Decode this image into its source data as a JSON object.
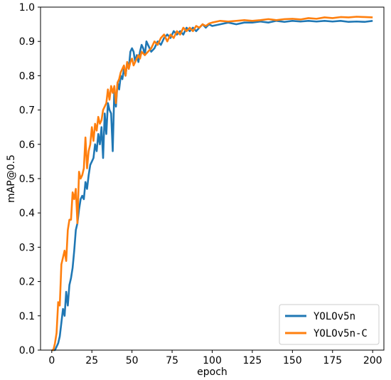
{
  "chart_data": {
    "type": "line",
    "title": "",
    "xlabel": "epoch",
    "ylabel": "mAP@0.5",
    "xlim": [
      -7,
      207
    ],
    "ylim": [
      0,
      1.0
    ],
    "xticks": [
      0,
      25,
      50,
      75,
      100,
      125,
      150,
      175,
      200
    ],
    "yticks": [
      0.0,
      0.1,
      0.2,
      0.3,
      0.4,
      0.5,
      0.6,
      0.7,
      0.8,
      0.9,
      1.0
    ],
    "grid": false,
    "legend": "lower-right",
    "series": [
      {
        "name": "YOLOv5n",
        "color": "#1f77b4",
        "points": [
          [
            0,
            0
          ],
          [
            2,
            0.0
          ],
          [
            3,
            0.01
          ],
          [
            4,
            0.02
          ],
          [
            5,
            0.04
          ],
          [
            6,
            0.08
          ],
          [
            7,
            0.12
          ],
          [
            8,
            0.1
          ],
          [
            9,
            0.17
          ],
          [
            10,
            0.13
          ],
          [
            11,
            0.19
          ],
          [
            12,
            0.21
          ],
          [
            13,
            0.24
          ],
          [
            14,
            0.29
          ],
          [
            15,
            0.35
          ],
          [
            16,
            0.37
          ],
          [
            17,
            0.41
          ],
          [
            18,
            0.44
          ],
          [
            19,
            0.45
          ],
          [
            20,
            0.44
          ],
          [
            21,
            0.49
          ],
          [
            22,
            0.47
          ],
          [
            23,
            0.51
          ],
          [
            24,
            0.54
          ],
          [
            25,
            0.55
          ],
          [
            26,
            0.56
          ],
          [
            27,
            0.6
          ],
          [
            28,
            0.58
          ],
          [
            29,
            0.63
          ],
          [
            30,
            0.6
          ],
          [
            31,
            0.65
          ],
          [
            32,
            0.56
          ],
          [
            33,
            0.69
          ],
          [
            34,
            0.63
          ],
          [
            35,
            0.72
          ],
          [
            36,
            0.7
          ],
          [
            37,
            0.69
          ],
          [
            38,
            0.58
          ],
          [
            39,
            0.76
          ],
          [
            40,
            0.71
          ],
          [
            41,
            0.78
          ],
          [
            42,
            0.76
          ],
          [
            43,
            0.8
          ],
          [
            44,
            0.79
          ],
          [
            45,
            0.82
          ],
          [
            46,
            0.8
          ],
          [
            47,
            0.84
          ],
          [
            48,
            0.82
          ],
          [
            49,
            0.87
          ],
          [
            50,
            0.88
          ],
          [
            51,
            0.87
          ],
          [
            52,
            0.84
          ],
          [
            53,
            0.86
          ],
          [
            54,
            0.84
          ],
          [
            55,
            0.87
          ],
          [
            56,
            0.89
          ],
          [
            57,
            0.88
          ],
          [
            58,
            0.86
          ],
          [
            59,
            0.9
          ],
          [
            60,
            0.89
          ],
          [
            62,
            0.87
          ],
          [
            64,
            0.88
          ],
          [
            66,
            0.9
          ],
          [
            68,
            0.89
          ],
          [
            70,
            0.91
          ],
          [
            72,
            0.92
          ],
          [
            74,
            0.91
          ],
          [
            76,
            0.93
          ],
          [
            78,
            0.92
          ],
          [
            80,
            0.93
          ],
          [
            82,
            0.92
          ],
          [
            84,
            0.94
          ],
          [
            86,
            0.93
          ],
          [
            88,
            0.94
          ],
          [
            90,
            0.93
          ],
          [
            92,
            0.94
          ],
          [
            94,
            0.95
          ],
          [
            96,
            0.94
          ],
          [
            98,
            0.95
          ],
          [
            100,
            0.945
          ],
          [
            105,
            0.95
          ],
          [
            110,
            0.955
          ],
          [
            115,
            0.95
          ],
          [
            120,
            0.955
          ],
          [
            125,
            0.955
          ],
          [
            130,
            0.958
          ],
          [
            135,
            0.955
          ],
          [
            140,
            0.96
          ],
          [
            145,
            0.957
          ],
          [
            150,
            0.96
          ],
          [
            155,
            0.958
          ],
          [
            160,
            0.96
          ],
          [
            165,
            0.958
          ],
          [
            170,
            0.96
          ],
          [
            175,
            0.958
          ],
          [
            180,
            0.96
          ],
          [
            185,
            0.957
          ],
          [
            190,
            0.958
          ],
          [
            195,
            0.957
          ],
          [
            200,
            0.96
          ]
        ]
      },
      {
        "name": "YOLOv5n-C",
        "color": "#ff7f0e",
        "points": [
          [
            0,
            0
          ],
          [
            1,
            0.0
          ],
          [
            2,
            0.02
          ],
          [
            3,
            0.05
          ],
          [
            4,
            0.14
          ],
          [
            5,
            0.13
          ],
          [
            6,
            0.25
          ],
          [
            7,
            0.27
          ],
          [
            8,
            0.29
          ],
          [
            9,
            0.26
          ],
          [
            10,
            0.35
          ],
          [
            11,
            0.38
          ],
          [
            12,
            0.38
          ],
          [
            13,
            0.46
          ],
          [
            14,
            0.44
          ],
          [
            15,
            0.47
          ],
          [
            16,
            0.37
          ],
          [
            17,
            0.52
          ],
          [
            18,
            0.5
          ],
          [
            19,
            0.51
          ],
          [
            20,
            0.53
          ],
          [
            21,
            0.62
          ],
          [
            22,
            0.53
          ],
          [
            23,
            0.58
          ],
          [
            24,
            0.6
          ],
          [
            25,
            0.65
          ],
          [
            26,
            0.61
          ],
          [
            27,
            0.66
          ],
          [
            28,
            0.64
          ],
          [
            29,
            0.68
          ],
          [
            30,
            0.66
          ],
          [
            31,
            0.67
          ],
          [
            32,
            0.7
          ],
          [
            33,
            0.71
          ],
          [
            34,
            0.72
          ],
          [
            35,
            0.76
          ],
          [
            36,
            0.73
          ],
          [
            37,
            0.77
          ],
          [
            38,
            0.75
          ],
          [
            39,
            0.77
          ],
          [
            40,
            0.72
          ],
          [
            41,
            0.78
          ],
          [
            42,
            0.79
          ],
          [
            43,
            0.81
          ],
          [
            44,
            0.82
          ],
          [
            45,
            0.83
          ],
          [
            46,
            0.8
          ],
          [
            47,
            0.84
          ],
          [
            48,
            0.82
          ],
          [
            49,
            0.84
          ],
          [
            50,
            0.85
          ],
          [
            51,
            0.83
          ],
          [
            52,
            0.84
          ],
          [
            53,
            0.85
          ],
          [
            54,
            0.86
          ],
          [
            55,
            0.85
          ],
          [
            56,
            0.87
          ],
          [
            58,
            0.86
          ],
          [
            60,
            0.87
          ],
          [
            62,
            0.88
          ],
          [
            64,
            0.9
          ],
          [
            66,
            0.89
          ],
          [
            68,
            0.91
          ],
          [
            70,
            0.92
          ],
          [
            72,
            0.9
          ],
          [
            74,
            0.92
          ],
          [
            76,
            0.91
          ],
          [
            78,
            0.93
          ],
          [
            80,
            0.92
          ],
          [
            82,
            0.94
          ],
          [
            84,
            0.93
          ],
          [
            86,
            0.94
          ],
          [
            88,
            0.93
          ],
          [
            90,
            0.945
          ],
          [
            92,
            0.94
          ],
          [
            94,
            0.95
          ],
          [
            96,
            0.945
          ],
          [
            98,
            0.952
          ],
          [
            100,
            0.955
          ],
          [
            105,
            0.96
          ],
          [
            110,
            0.958
          ],
          [
            115,
            0.96
          ],
          [
            120,
            0.962
          ],
          [
            125,
            0.96
          ],
          [
            130,
            0.962
          ],
          [
            135,
            0.965
          ],
          [
            140,
            0.962
          ],
          [
            145,
            0.965
          ],
          [
            150,
            0.966
          ],
          [
            155,
            0.964
          ],
          [
            160,
            0.968
          ],
          [
            165,
            0.966
          ],
          [
            170,
            0.97
          ],
          [
            175,
            0.968
          ],
          [
            180,
            0.971
          ],
          [
            185,
            0.97
          ],
          [
            190,
            0.972
          ],
          [
            195,
            0.971
          ],
          [
            200,
            0.97
          ]
        ]
      }
    ]
  }
}
